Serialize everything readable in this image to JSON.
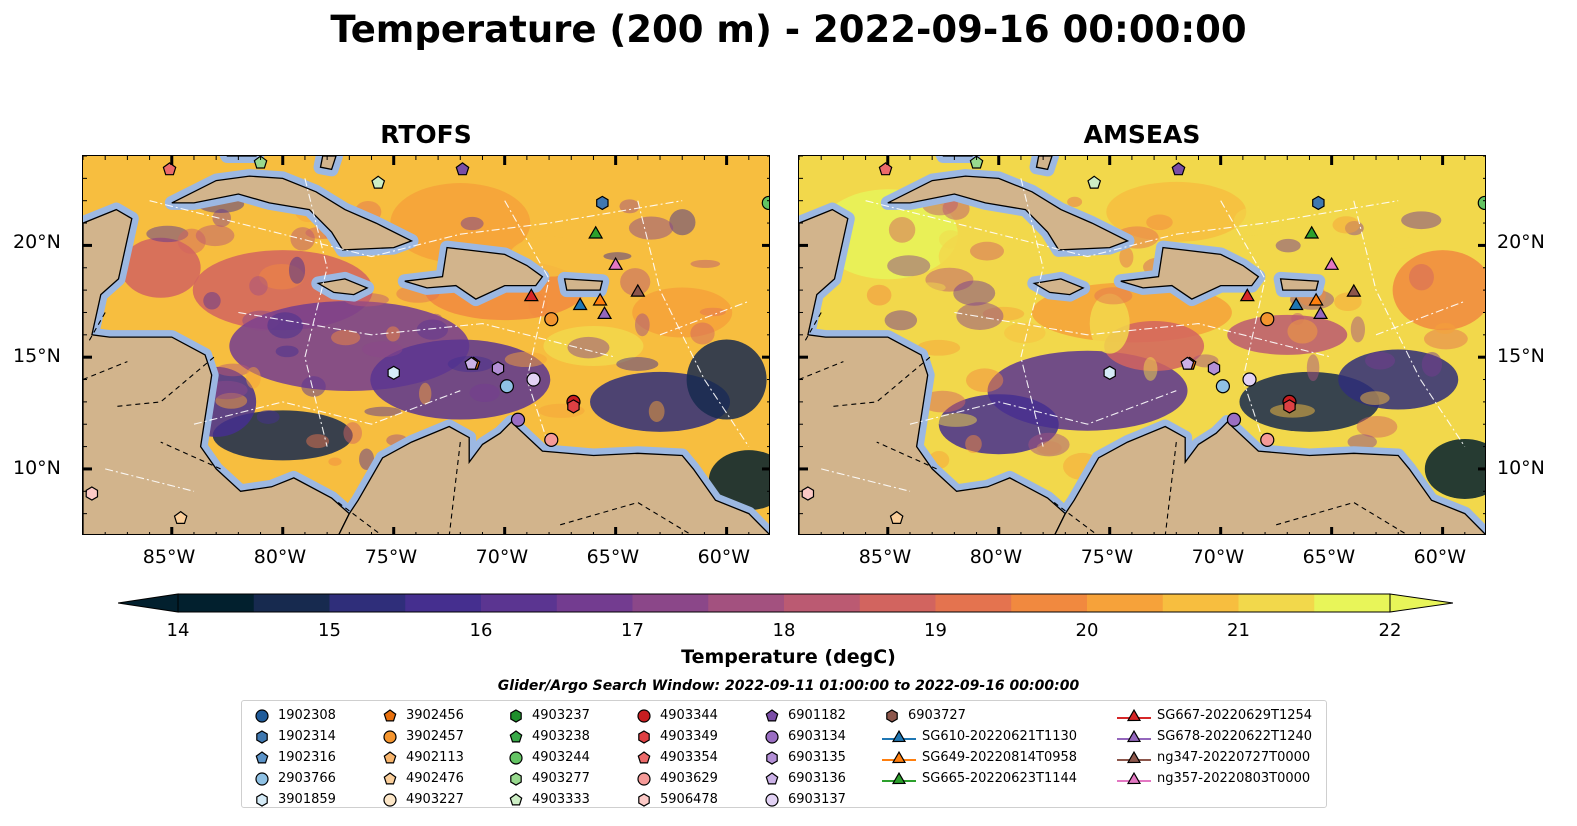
{
  "title": "Temperature (200 m) - 2022-09-16 00:00:00",
  "panels": [
    {
      "name": "RTOFS"
    },
    {
      "name": "AMSEAS"
    }
  ],
  "map": {
    "lon_range": [
      -89,
      -58
    ],
    "lat_range": [
      7,
      24
    ],
    "lon_ticks": [
      "85°W",
      "80°W",
      "75°W",
      "70°W",
      "65°W",
      "60°W"
    ],
    "lon_tick_values": [
      -85,
      -80,
      -75,
      -70,
      -65,
      -60
    ],
    "lat_ticks": [
      "20°N",
      "15°N",
      "10°N"
    ],
    "lat_tick_values": [
      20,
      15,
      10
    ],
    "colors": {
      "land": "#d2b48c",
      "shallow_water": "#9cb8e2",
      "coast": "#000000"
    }
  },
  "colorbar": {
    "label": "Temperature (degC)",
    "ticks": [
      "14",
      "15",
      "16",
      "17",
      "18",
      "19",
      "20",
      "21",
      "22"
    ],
    "range": [
      14,
      22
    ],
    "colormap": [
      "#02202e",
      "#172a4f",
      "#2f2e7a",
      "#452f8f",
      "#5b3591",
      "#733c90",
      "#8b4789",
      "#a3517f",
      "#bb5a72",
      "#d2645f",
      "#e4734f",
      "#f1893f",
      "#f6a23a",
      "#f7be3f",
      "#f2d84b",
      "#e8f559"
    ]
  },
  "search_window": "Glider/Argo Search Window: 2022-09-11 01:00:00 to 2022-09-16 00:00:00",
  "legend": {
    "columns": [
      [
        {
          "label": "1902308",
          "marker": "circle",
          "color": "#1f5b99"
        },
        {
          "label": "1902314",
          "marker": "hexagon",
          "color": "#3f78b0"
        },
        {
          "label": "1902316",
          "marker": "pentagon",
          "color": "#5b93c8"
        },
        {
          "label": "2903766",
          "marker": "circle",
          "color": "#8fc1e4"
        },
        {
          "label": "3901859",
          "marker": "hexagon",
          "color": "#d5ebf7"
        }
      ],
      [
        {
          "label": "3902456",
          "marker": "pentagon",
          "color": "#e8700e"
        },
        {
          "label": "3902457",
          "marker": "circle",
          "color": "#f4952f"
        },
        {
          "label": "4902113",
          "marker": "pentagon",
          "color": "#f8b56c"
        },
        {
          "label": "4902476",
          "marker": "pentagon",
          "color": "#fbcf9b"
        },
        {
          "label": "4903227",
          "marker": "circle",
          "color": "#fde7c8"
        }
      ],
      [
        {
          "label": "4903237",
          "marker": "hexagon",
          "color": "#1f8f2c"
        },
        {
          "label": "4903238",
          "marker": "pentagon",
          "color": "#38a847"
        },
        {
          "label": "4903244",
          "marker": "circle",
          "color": "#63c463"
        },
        {
          "label": "4903277",
          "marker": "hexagon",
          "color": "#98d98e"
        },
        {
          "label": "4903333",
          "marker": "pentagon",
          "color": "#cdeec5"
        }
      ],
      [
        {
          "label": "4903344",
          "marker": "circle",
          "color": "#c81d20"
        },
        {
          "label": "4903349",
          "marker": "hexagon",
          "color": "#de4043"
        },
        {
          "label": "4903354",
          "marker": "pentagon",
          "color": "#ec6a6a"
        },
        {
          "label": "4903629",
          "marker": "circle",
          "color": "#f59a98"
        },
        {
          "label": "5906478",
          "marker": "hexagon",
          "color": "#fcc9c6"
        }
      ],
      [
        {
          "label": "6901182",
          "marker": "pentagon",
          "color": "#7a4da6"
        },
        {
          "label": "6903134",
          "marker": "circle",
          "color": "#9a6ec2"
        },
        {
          "label": "6903135",
          "marker": "hexagon",
          "color": "#b38fd6"
        },
        {
          "label": "6903136",
          "marker": "pentagon",
          "color": "#cbb1e7"
        },
        {
          "label": "6903137",
          "marker": "circle",
          "color": "#e2d2f4"
        }
      ],
      [
        {
          "label": "6903727",
          "marker": "hexagon",
          "color": "#8c564b"
        },
        {
          "label": "SG610-20220621T1130",
          "marker": "triangle-line",
          "color": "#1f77b4"
        },
        {
          "label": "SG649-20220814T0958",
          "marker": "triangle-line",
          "color": "#ff7f0e"
        },
        {
          "label": "SG665-20220623T1144",
          "marker": "triangle-line",
          "color": "#2ca02c"
        }
      ],
      [
        {
          "label": "SG667-20220629T1254",
          "marker": "triangle-line",
          "color": "#d62728"
        },
        {
          "label": "SG678-20220622T1240",
          "marker": "triangle-line",
          "color": "#9467bd"
        },
        {
          "label": "ng347-20220727T0000",
          "marker": "triangle-line",
          "color": "#8c564b"
        },
        {
          "label": "ng357-20220803T0000",
          "marker": "triangle-line",
          "color": "#e377c2"
        }
      ]
    ]
  },
  "observations": [
    {
      "lon": -85.1,
      "lat": 23.4,
      "marker": "pentagon",
      "color": "#ec6a6a"
    },
    {
      "lon": -81.0,
      "lat": 23.7,
      "marker": "pentagon",
      "color": "#98d98e"
    },
    {
      "lon": -75.7,
      "lat": 22.8,
      "marker": "pentagon",
      "color": "#cdeec5"
    },
    {
      "lon": -71.9,
      "lat": 23.4,
      "marker": "pentagon",
      "color": "#7a4da6"
    },
    {
      "lon": -65.6,
      "lat": 21.9,
      "marker": "hexagon",
      "color": "#3f78b0"
    },
    {
      "lon": -58.1,
      "lat": 21.9,
      "marker": "circle",
      "color": "#63c463"
    },
    {
      "lon": -67.9,
      "lat": 16.7,
      "marker": "circle",
      "color": "#f4952f"
    },
    {
      "lon": -75.0,
      "lat": 14.3,
      "marker": "hexagon",
      "color": "#d5ebf7"
    },
    {
      "lon": -71.4,
      "lat": 14.7,
      "marker": "pentagon",
      "color": "#e8700e"
    },
    {
      "lon": -71.5,
      "lat": 14.7,
      "marker": "pentagon",
      "color": "#cbb1e7"
    },
    {
      "lon": -70.3,
      "lat": 14.5,
      "marker": "hexagon",
      "color": "#b38fd6"
    },
    {
      "lon": -68.7,
      "lat": 14.0,
      "marker": "circle",
      "color": "#e2d2f4"
    },
    {
      "lon": -69.9,
      "lat": 13.7,
      "marker": "circle",
      "color": "#8fc1e4"
    },
    {
      "lon": -66.9,
      "lat": 13.0,
      "marker": "circle",
      "color": "#c81d20"
    },
    {
      "lon": -66.9,
      "lat": 12.8,
      "marker": "hexagon",
      "color": "#de4043"
    },
    {
      "lon": -69.4,
      "lat": 12.2,
      "marker": "circle",
      "color": "#9a6ec2"
    },
    {
      "lon": -67.9,
      "lat": 11.3,
      "marker": "circle",
      "color": "#f59a98"
    },
    {
      "lon": -88.6,
      "lat": 8.9,
      "marker": "hexagon",
      "color": "#fcc9c6"
    },
    {
      "lon": -84.6,
      "lat": 7.8,
      "marker": "pentagon",
      "color": "#fbcf9b"
    },
    {
      "lon": -65.9,
      "lat": 20.5,
      "marker": "triangle",
      "color": "#2ca02c"
    },
    {
      "lon": -68.8,
      "lat": 17.7,
      "marker": "triangle",
      "color": "#d62728"
    },
    {
      "lon": -66.6,
      "lat": 17.3,
      "marker": "triangle",
      "color": "#1f77b4"
    },
    {
      "lon": -65.7,
      "lat": 17.5,
      "marker": "triangle",
      "color": "#ff7f0e"
    },
    {
      "lon": -65.5,
      "lat": 16.9,
      "marker": "triangle",
      "color": "#9467bd"
    },
    {
      "lon": -64.0,
      "lat": 17.9,
      "marker": "triangle",
      "color": "#8c564b"
    },
    {
      "lon": -65.0,
      "lat": 19.1,
      "marker": "triangle",
      "color": "#e377c2"
    }
  ]
}
